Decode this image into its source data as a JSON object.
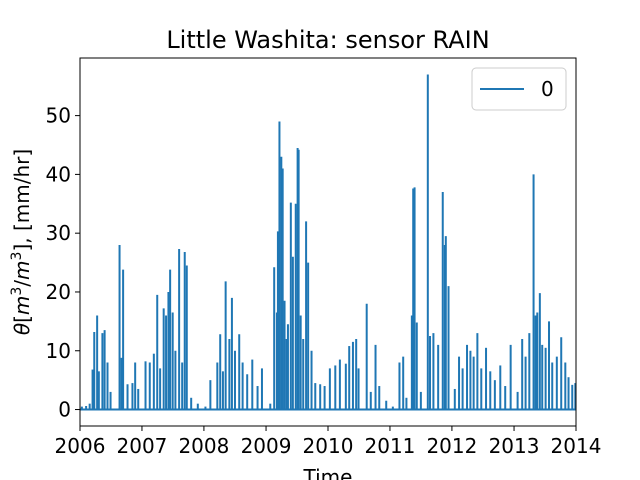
{
  "chart_data": {
    "type": "line",
    "title": "Little Washita: sensor RAIN",
    "xlabel": "Time",
    "ylabel_parts": {
      "theta": "θ",
      "open": "[",
      "m1": "m",
      "exp1": "3",
      "slash": "/",
      "m2": "m",
      "exp2": "3",
      "rest": "], [mm/hr]"
    },
    "xlim": [
      "2006-01-01",
      "2014-01-01"
    ],
    "ylim": [
      -2.8,
      59.8
    ],
    "x_ticks": [
      "2006",
      "2007",
      "2008",
      "2009",
      "2010",
      "2011",
      "2012",
      "2013",
      "2014"
    ],
    "y_ticks": [
      0,
      10,
      20,
      30,
      40,
      50
    ],
    "y_tick_labels": [
      "0",
      "10",
      "20",
      "30",
      "40",
      "50"
    ],
    "legend": {
      "position": "upper-right",
      "entries": [
        "0"
      ]
    },
    "grid": false,
    "series": [
      {
        "name": "0",
        "color": "#1f77b4",
        "points": [
          [
            "2006-01-01",
            0
          ],
          [
            "2006-01-12",
            0.5
          ],
          [
            "2006-02-06",
            0.6
          ],
          [
            "2006-02-27",
            1.0
          ],
          [
            "2006-03-16",
            6.8
          ],
          [
            "2006-03-26",
            13.2
          ],
          [
            "2006-04-12",
            16.0
          ],
          [
            "2006-04-22",
            6.5
          ],
          [
            "2006-05-13",
            13.0
          ],
          [
            "2006-05-26",
            13.5
          ],
          [
            "2006-06-12",
            8.0
          ],
          [
            "2006-06-30",
            3.0
          ],
          [
            "2006-08-22",
            28.0
          ],
          [
            "2006-09-03",
            8.8
          ],
          [
            "2006-09-12",
            23.8
          ],
          [
            "2006-10-08",
            4.3
          ],
          [
            "2006-11-06",
            4.5
          ],
          [
            "2006-11-22",
            8.0
          ],
          [
            "2006-12-10",
            3.5
          ],
          [
            "2007-01-22",
            8.2
          ],
          [
            "2007-02-16",
            8.0
          ],
          [
            "2007-03-12",
            9.5
          ],
          [
            "2007-04-01",
            19.5
          ],
          [
            "2007-04-18",
            7.0
          ],
          [
            "2007-05-09",
            17.2
          ],
          [
            "2007-05-23",
            16.0
          ],
          [
            "2007-06-06",
            20.0
          ],
          [
            "2007-06-16",
            23.8
          ],
          [
            "2007-07-01",
            16.5
          ],
          [
            "2007-07-17",
            10.0
          ],
          [
            "2007-08-08",
            27.3
          ],
          [
            "2007-08-26",
            8.0
          ],
          [
            "2007-09-10",
            26.8
          ],
          [
            "2007-09-22",
            24.5
          ],
          [
            "2007-10-18",
            2.0
          ],
          [
            "2007-11-26",
            1.0
          ],
          [
            "2008-01-10",
            0.5
          ],
          [
            "2008-02-08",
            5.0
          ],
          [
            "2008-03-20",
            8.0
          ],
          [
            "2008-04-06",
            12.8
          ],
          [
            "2008-04-22",
            6.5
          ],
          [
            "2008-05-08",
            21.8
          ],
          [
            "2008-05-30",
            12.0
          ],
          [
            "2008-06-14",
            19.0
          ],
          [
            "2008-07-02",
            10.0
          ],
          [
            "2008-07-27",
            12.8
          ],
          [
            "2008-08-16",
            8.0
          ],
          [
            "2008-09-12",
            6.0
          ],
          [
            "2008-10-12",
            8.5
          ],
          [
            "2008-11-12",
            4.0
          ],
          [
            "2008-12-08",
            7.0
          ],
          [
            "2009-01-26",
            1.0
          ],
          [
            "2009-02-18",
            24.2
          ],
          [
            "2009-03-06",
            16.5
          ],
          [
            "2009-03-12",
            30.3
          ],
          [
            "2009-03-21",
            49.0
          ],
          [
            "2009-04-01",
            43.0
          ],
          [
            "2009-04-09",
            41.0
          ],
          [
            "2009-04-20",
            18.5
          ],
          [
            "2009-05-02",
            12.0
          ],
          [
            "2009-05-10",
            14.5
          ],
          [
            "2009-05-27",
            35.2
          ],
          [
            "2009-06-08",
            26.0
          ],
          [
            "2009-06-25",
            35.0
          ],
          [
            "2009-07-06",
            44.5
          ],
          [
            "2009-07-12",
            44.2
          ],
          [
            "2009-07-24",
            16.0
          ],
          [
            "2009-08-08",
            12.0
          ],
          [
            "2009-08-25",
            32.0
          ],
          [
            "2009-09-06",
            25.0
          ],
          [
            "2009-09-26",
            10.0
          ],
          [
            "2009-10-18",
            4.5
          ],
          [
            "2009-11-16",
            4.3
          ],
          [
            "2009-12-12",
            4.0
          ],
          [
            "2010-01-12",
            7.0
          ],
          [
            "2010-02-13",
            7.5
          ],
          [
            "2010-03-12",
            8.5
          ],
          [
            "2010-04-16",
            7.8
          ],
          [
            "2010-05-06",
            10.8
          ],
          [
            "2010-05-28",
            11.5
          ],
          [
            "2010-06-16",
            12.0
          ],
          [
            "2010-06-30",
            7.0
          ],
          [
            "2010-08-17",
            18.0
          ],
          [
            "2010-09-10",
            3.0
          ],
          [
            "2010-10-08",
            11.0
          ],
          [
            "2010-10-30",
            4.0
          ],
          [
            "2010-12-10",
            1.5
          ],
          [
            "2011-01-18",
            0.5
          ],
          [
            "2011-02-26",
            8.0
          ],
          [
            "2011-03-20",
            9.0
          ],
          [
            "2011-04-08",
            2.0
          ],
          [
            "2011-05-10",
            16.0
          ],
          [
            "2011-05-18",
            37.6
          ],
          [
            "2011-05-26",
            37.8
          ],
          [
            "2011-06-08",
            14.8
          ],
          [
            "2011-07-02",
            3.0
          ],
          [
            "2011-08-12",
            57.0
          ],
          [
            "2011-08-25",
            12.5
          ],
          [
            "2011-09-14",
            13.0
          ],
          [
            "2011-10-12",
            11.0
          ],
          [
            "2011-11-08",
            37.0
          ],
          [
            "2011-11-20",
            28.0
          ],
          [
            "2011-11-26",
            29.5
          ],
          [
            "2011-12-12",
            21.0
          ],
          [
            "2012-01-18",
            3.5
          ],
          [
            "2012-02-12",
            9.0
          ],
          [
            "2012-03-04",
            7.0
          ],
          [
            "2012-03-30",
            11.0
          ],
          [
            "2012-04-19",
            10.0
          ],
          [
            "2012-05-08",
            9.0
          ],
          [
            "2012-05-30",
            13.0
          ],
          [
            "2012-06-22",
            7.0
          ],
          [
            "2012-07-20",
            10.5
          ],
          [
            "2012-08-14",
            6.5
          ],
          [
            "2012-09-10",
            5.0
          ],
          [
            "2012-10-12",
            7.5
          ],
          [
            "2012-11-10",
            4.0
          ],
          [
            "2012-12-12",
            11.0
          ],
          [
            "2013-01-22",
            3.0
          ],
          [
            "2013-02-18",
            12.0
          ],
          [
            "2013-03-10",
            9.0
          ],
          [
            "2013-04-01",
            13.0
          ],
          [
            "2013-04-26",
            40.0
          ],
          [
            "2013-05-08",
            16.0
          ],
          [
            "2013-05-18",
            16.5
          ],
          [
            "2013-06-02",
            19.8
          ],
          [
            "2013-06-16",
            11.0
          ],
          [
            "2013-07-06",
            10.5
          ],
          [
            "2013-07-26",
            15.0
          ],
          [
            "2013-08-14",
            8.0
          ],
          [
            "2013-09-10",
            9.0
          ],
          [
            "2013-10-06",
            12.3
          ],
          [
            "2013-10-30",
            8.0
          ],
          [
            "2013-11-18",
            5.5
          ],
          [
            "2013-12-10",
            4.2
          ],
          [
            "2013-12-28",
            4.5
          ]
        ]
      }
    ]
  }
}
